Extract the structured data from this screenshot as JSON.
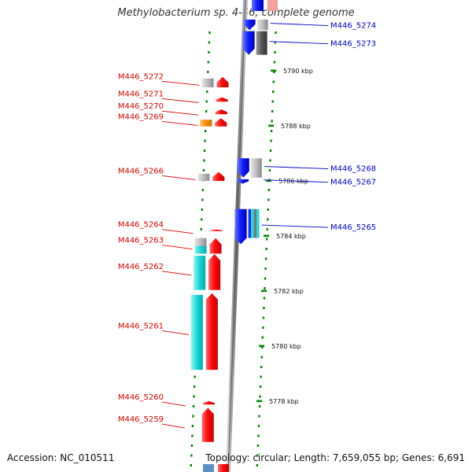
{
  "title": "Methylobacterium sp. 4-46, complete genome",
  "footer": {
    "accession": "Accession: NC_010511",
    "summary": "Topology: circular; Length: 7,659,055 bp; Genes: 6,691"
  },
  "colors": {
    "left_label": "#dd0000",
    "right_label": "#0000cc",
    "tick": "#008800",
    "backbone": "#8a8a8a",
    "forward_gene": "#ff1a1a",
    "reverse_gene": "#1a2bff",
    "grey_feature": "#b4b4b4",
    "cyan_feature": "#22d8d8",
    "orange_feature": "#ff8c00"
  },
  "scale_labels": [
    {
      "kbp": 5790,
      "text": "5790 kbp"
    },
    {
      "kbp": 5788,
      "text": "5788 kbp"
    },
    {
      "kbp": 5786,
      "text": "5786 kbp"
    },
    {
      "kbp": 5784,
      "text": "5784 kbp"
    },
    {
      "kbp": 5782,
      "text": "5782 kbp"
    },
    {
      "kbp": 5780,
      "text": "5780 kbp"
    },
    {
      "kbp": 5778,
      "text": "5778 kbp"
    }
  ],
  "left_genes": [
    {
      "label": "M446_5272",
      "kbp_start": 5789.78,
      "kbp_end": 5789.4,
      "features": [
        "grey"
      ]
    },
    {
      "label": "M446_5271",
      "kbp_start": 5789.04,
      "kbp_end": 5788.88,
      "features": []
    },
    {
      "label": "M446_5270",
      "kbp_start": 5788.6,
      "kbp_end": 5788.42,
      "features": []
    },
    {
      "label": "M446_5269",
      "kbp_start": 5788.28,
      "kbp_end": 5787.98,
      "features": [
        "orange"
      ]
    },
    {
      "label": "M446_5266",
      "kbp_start": 5786.32,
      "kbp_end": 5786.0,
      "features": [
        "grey"
      ]
    },
    {
      "label": "M446_5264",
      "kbp_start": 5784.24,
      "kbp_end": 5784.18,
      "features": []
    },
    {
      "label": "M446_5263",
      "kbp_start": 5783.92,
      "kbp_end": 5783.36,
      "features": [
        "grey",
        "cyan"
      ]
    },
    {
      "label": "M446_5262",
      "kbp_start": 5783.34,
      "kbp_end": 5782.04,
      "features": [
        "cyan"
      ]
    },
    {
      "label": "M446_5261",
      "kbp_start": 5781.92,
      "kbp_end": 5779.14,
      "features": [
        "cyan"
      ]
    },
    {
      "label": "M446_5260",
      "kbp_start": 5778.0,
      "kbp_end": 5777.88,
      "features": []
    },
    {
      "label": "M446_5259",
      "kbp_start": 5777.76,
      "kbp_end": 5776.52,
      "features": []
    }
  ],
  "right_genes": [
    {
      "label": "M446_5274",
      "kbp_start": 5791.86,
      "kbp_end": 5791.48,
      "features": [
        "grey"
      ]
    },
    {
      "label": "M446_5273",
      "kbp_start": 5791.44,
      "kbp_end": 5790.58,
      "features": [
        "grey"
      ]
    },
    {
      "label": "M446_5268",
      "kbp_start": 5786.82,
      "kbp_end": 5786.12,
      "features": [
        "grey"
      ]
    },
    {
      "label": "M446_5267",
      "kbp_start": 5786.06,
      "kbp_end": 5785.9,
      "features": []
    },
    {
      "label": "M446_5265",
      "kbp_start": 5784.98,
      "kbp_end": 5783.7,
      "features": [
        "stripes"
      ]
    }
  ]
}
